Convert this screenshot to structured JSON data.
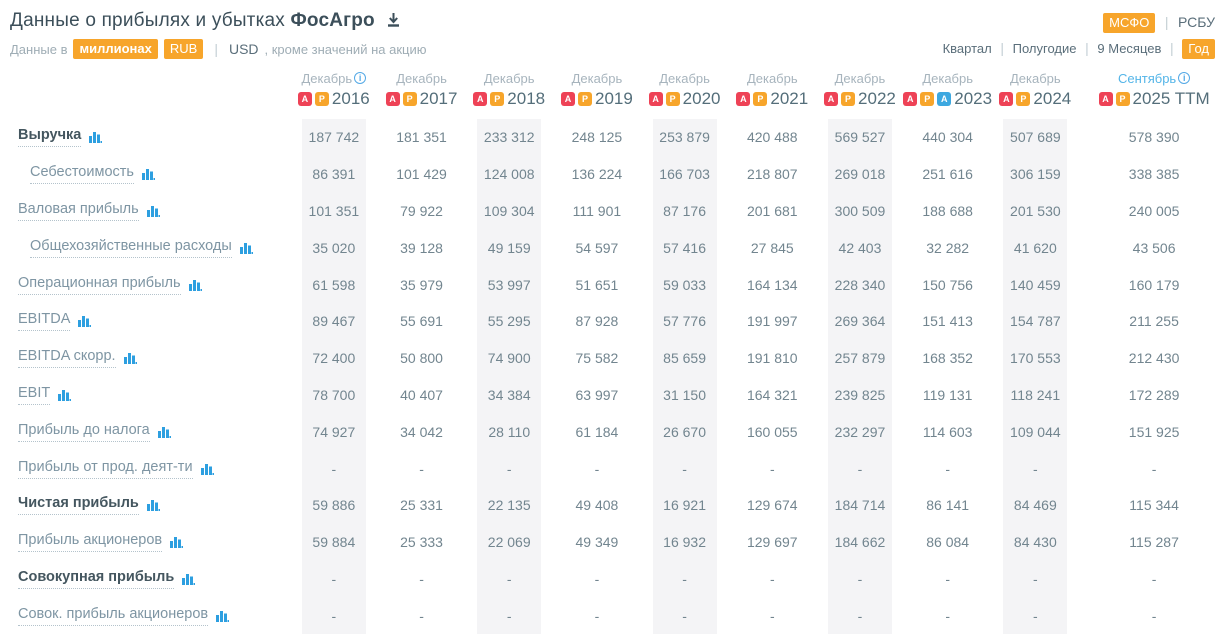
{
  "header": {
    "title_prefix": "Данные о прибылях и убытках",
    "company": "ФосАгро",
    "sep": "|",
    "standards": {
      "selected": "МСФО",
      "other": "РСБУ"
    },
    "units": {
      "label_prefix": "Данные в",
      "unit_chip": "миллионах",
      "currency_selected": "RUB",
      "currency_other": "USD",
      "suffix": ", кроме значений на акцию"
    },
    "periods": [
      "Квартал",
      "Полугодие",
      "9 Месяцев",
      "Год"
    ],
    "period_selected": "Год"
  },
  "colors": {
    "accent_orange": "#F7A52B",
    "icon_pdf_red": "#EE4256",
    "icon_pdf_blue": "#3DA8E0",
    "icon_bars_blue": "#2D9FE0",
    "info_blue": "#54A9E6",
    "month_highlight_blue": "#54B5E8",
    "column_stripe": "#F4F4F6",
    "text_dark": "#3C4F5A",
    "text_gray": "#7E95A3"
  },
  "table": {
    "columns": [
      {
        "month": "Декабрь",
        "year": "2016",
        "info": true,
        "highlight": false,
        "icons": [
          "pdf",
          "p"
        ],
        "striped": true
      },
      {
        "month": "Декабрь",
        "year": "2017",
        "info": false,
        "highlight": false,
        "icons": [
          "pdf",
          "p"
        ],
        "striped": false
      },
      {
        "month": "Декабрь",
        "year": "2018",
        "info": false,
        "highlight": false,
        "icons": [
          "pdf",
          "p"
        ],
        "striped": true
      },
      {
        "month": "Декабрь",
        "year": "2019",
        "info": false,
        "highlight": false,
        "icons": [
          "pdf",
          "p"
        ],
        "striped": false
      },
      {
        "month": "Декабрь",
        "year": "2020",
        "info": false,
        "highlight": false,
        "icons": [
          "pdf",
          "p"
        ],
        "striped": true
      },
      {
        "month": "Декабрь",
        "year": "2021",
        "info": false,
        "highlight": false,
        "icons": [
          "pdf",
          "p"
        ],
        "striped": false
      },
      {
        "month": "Декабрь",
        "year": "2022",
        "info": false,
        "highlight": false,
        "icons": [
          "pdf",
          "p"
        ],
        "striped": true
      },
      {
        "month": "Декабрь",
        "year": "2023",
        "info": false,
        "highlight": false,
        "icons": [
          "pdf",
          "p",
          "pdf-blue"
        ],
        "striped": false
      },
      {
        "month": "Декабрь",
        "year": "2024",
        "info": false,
        "highlight": false,
        "icons": [
          "pdf",
          "p"
        ],
        "striped": true
      },
      {
        "month": "Сентябрь",
        "year": "2025 TTM",
        "info": true,
        "highlight": true,
        "icons": [
          "pdf",
          "p"
        ],
        "striped": false
      }
    ],
    "rows": [
      {
        "label": "Выручка",
        "bold": true,
        "indent": false,
        "values": [
          "187 742",
          "181 351",
          "233 312",
          "248 125",
          "253 879",
          "420 488",
          "569 527",
          "440 304",
          "507 689",
          "578 390"
        ]
      },
      {
        "label": "Себестоимость",
        "bold": false,
        "indent": true,
        "values": [
          "86 391",
          "101 429",
          "124 008",
          "136 224",
          "166 703",
          "218 807",
          "269 018",
          "251 616",
          "306 159",
          "338 385"
        ]
      },
      {
        "label": "Валовая прибыль",
        "bold": false,
        "indent": false,
        "values": [
          "101 351",
          "79 922",
          "109 304",
          "111 901",
          "87 176",
          "201 681",
          "300 509",
          "188 688",
          "201 530",
          "240 005"
        ]
      },
      {
        "label": "Общехозяйственные расходы",
        "bold": false,
        "indent": true,
        "values": [
          "35 020",
          "39 128",
          "49 159",
          "54 597",
          "57 416",
          "27 845",
          "42 403",
          "32 282",
          "41 620",
          "43 506"
        ]
      },
      {
        "label": "Операционная прибыль",
        "bold": false,
        "indent": false,
        "values": [
          "61 598",
          "35 979",
          "53 997",
          "51 651",
          "59 033",
          "164 134",
          "228 340",
          "150 756",
          "140 459",
          "160 179"
        ]
      },
      {
        "label": "EBITDA",
        "bold": false,
        "indent": false,
        "values": [
          "89 467",
          "55 691",
          "55 295",
          "87 928",
          "57 776",
          "191 997",
          "269 364",
          "151 413",
          "154 787",
          "211 255"
        ]
      },
      {
        "label": "EBITDA скорр.",
        "bold": false,
        "indent": false,
        "values": [
          "72 400",
          "50 800",
          "74 900",
          "75 582",
          "85 659",
          "191 810",
          "257 879",
          "168 352",
          "170 553",
          "212 430"
        ]
      },
      {
        "label": "EBIT",
        "bold": false,
        "indent": false,
        "values": [
          "78 700",
          "40 407",
          "34 384",
          "63 997",
          "31 150",
          "164 321",
          "239 825",
          "119 131",
          "118 241",
          "172 289"
        ]
      },
      {
        "label": "Прибыль до налога",
        "bold": false,
        "indent": false,
        "values": [
          "74 927",
          "34 042",
          "28 110",
          "61 184",
          "26 670",
          "160 055",
          "232 297",
          "114 603",
          "109 044",
          "151 925"
        ]
      },
      {
        "label": "Прибыль от прод. деят-ти",
        "bold": false,
        "indent": false,
        "values": [
          "-",
          "-",
          "-",
          "-",
          "-",
          "-",
          "-",
          "-",
          "-",
          "-"
        ]
      },
      {
        "label": "Чистая прибыль",
        "bold": true,
        "indent": false,
        "values": [
          "59 886",
          "25 331",
          "22 135",
          "49 408",
          "16 921",
          "129 674",
          "184 714",
          "86 141",
          "84 469",
          "115 344"
        ]
      },
      {
        "label": "Прибыль акционеров",
        "bold": false,
        "indent": false,
        "values": [
          "59 884",
          "25 333",
          "22 069",
          "49 349",
          "16 932",
          "129 697",
          "184 662",
          "86 084",
          "84 430",
          "115 287"
        ]
      },
      {
        "label": "Совокупная прибыль",
        "bold": true,
        "indent": false,
        "values": [
          "-",
          "-",
          "-",
          "-",
          "-",
          "-",
          "-",
          "-",
          "-",
          "-"
        ]
      },
      {
        "label": "Совок. прибыль акционеров",
        "bold": false,
        "indent": false,
        "values": [
          "-",
          "-",
          "-",
          "-",
          "-",
          "-",
          "-",
          "-",
          "-",
          "-"
        ]
      }
    ]
  }
}
